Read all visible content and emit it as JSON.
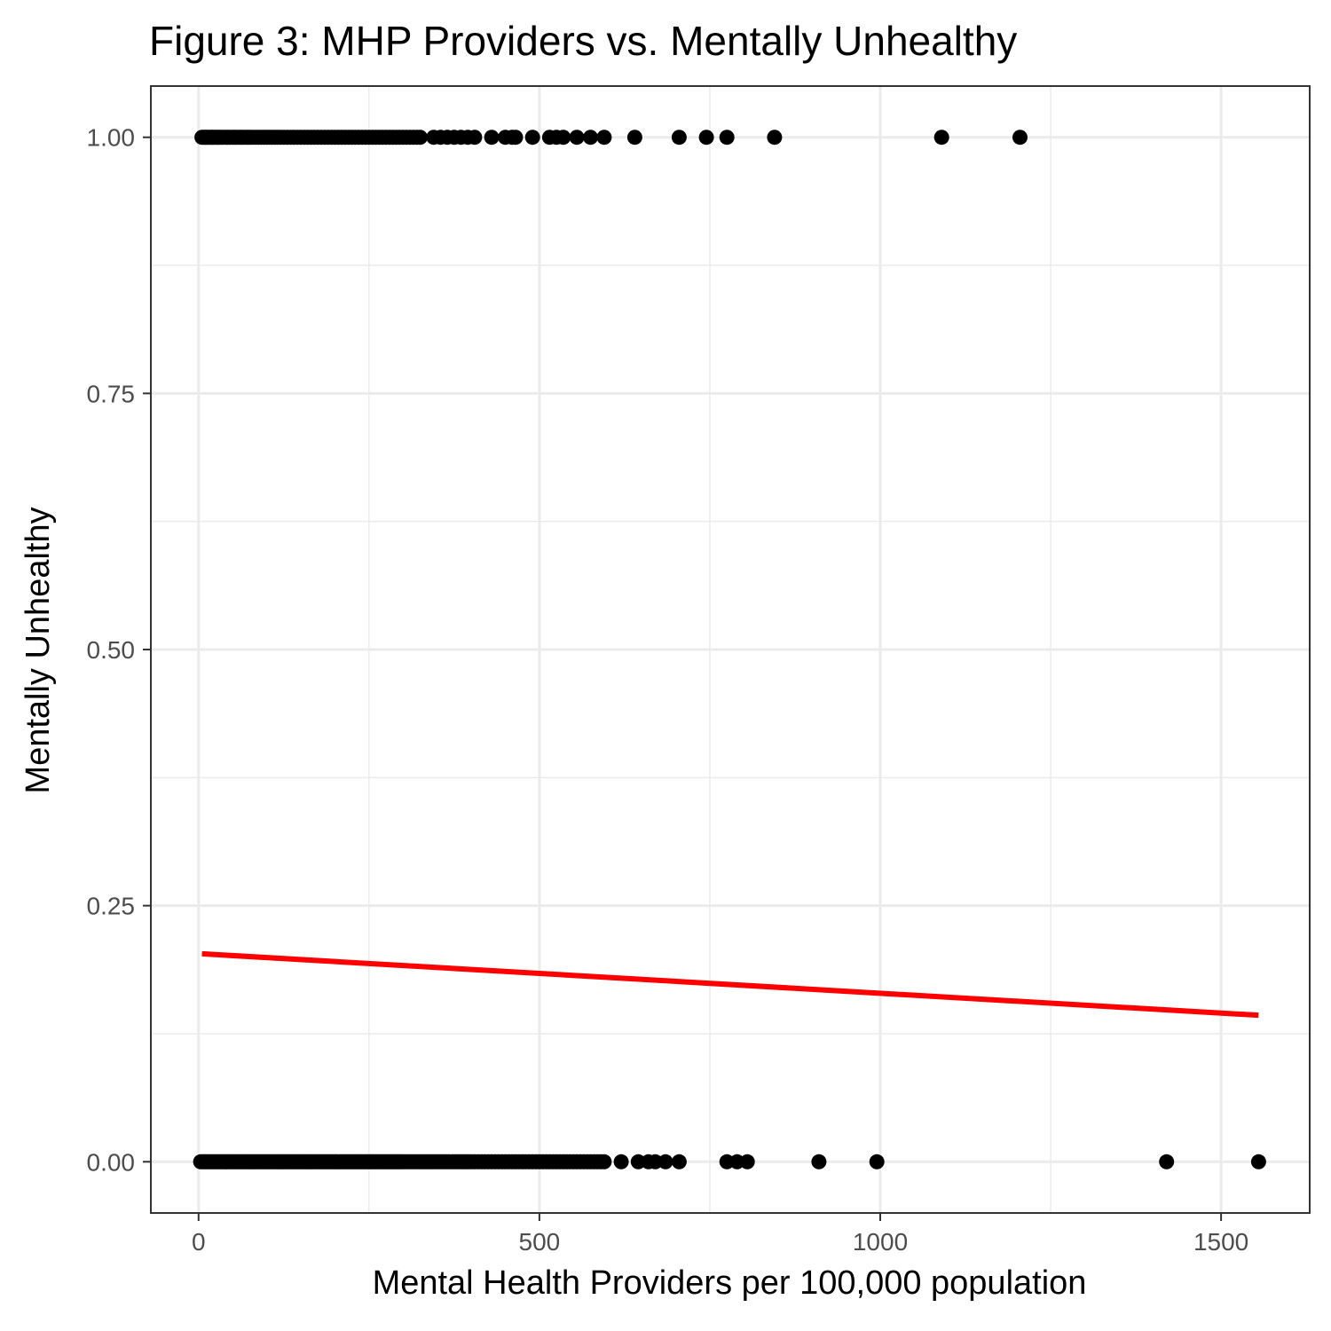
{
  "chart_data": {
    "type": "scatter",
    "title": "Figure 3: MHP Providers vs. Mentally Unhealthy",
    "xlabel": "Mental Health Providers per 100,000 population",
    "ylabel": "Mentally Unhealthy",
    "xlim": [
      -70,
      1630
    ],
    "ylim": [
      -0.05,
      1.05
    ],
    "x_ticks": [
      0,
      500,
      1000,
      1500
    ],
    "x_tick_labels": [
      "0",
      "500",
      "1000",
      "1500"
    ],
    "y_ticks": [
      0,
      0.25,
      0.5,
      0.75,
      1
    ],
    "y_tick_labels": [
      "0.00",
      "0.25",
      "0.50",
      "0.75",
      "1.00"
    ],
    "grid": true,
    "legend": "none",
    "colors": {
      "points": "#000000",
      "trend_line": "#ff0000",
      "grid": "#ebebeb",
      "panel_border": "#333333"
    },
    "series": [
      {
        "y": 1,
        "x": [
          5,
          8,
          10,
          12,
          15,
          18,
          20,
          22,
          25,
          28,
          30,
          33,
          36,
          40,
          43,
          46,
          50,
          53,
          56,
          60,
          63,
          66,
          70,
          73,
          76,
          80,
          84,
          88,
          92,
          96,
          100,
          104,
          108,
          112,
          116,
          120,
          125,
          130,
          135,
          140,
          145,
          150,
          155,
          160,
          165,
          170,
          175,
          180,
          185,
          190,
          195,
          200,
          205,
          210,
          215,
          220,
          225,
          230,
          235,
          240,
          245,
          250,
          255,
          260,
          265,
          270,
          275,
          280,
          285,
          290,
          295,
          300,
          305,
          310,
          315,
          320,
          325,
          345,
          355,
          365,
          375,
          385,
          395,
          405,
          430,
          450,
          460,
          465,
          490,
          515,
          525,
          535,
          555,
          575,
          595,
          640,
          705,
          745,
          775,
          845,
          1090,
          1205
        ]
      },
      {
        "y": 0,
        "x": [
          3,
          6,
          9,
          12,
          15,
          18,
          21,
          24,
          27,
          30,
          33,
          36,
          39,
          42,
          45,
          48,
          51,
          54,
          57,
          60,
          63,
          66,
          69,
          72,
          75,
          78,
          81,
          84,
          87,
          90,
          93,
          96,
          99,
          102,
          105,
          108,
          111,
          114,
          117,
          120,
          123,
          126,
          129,
          132,
          135,
          138,
          141,
          144,
          147,
          150,
          153,
          156,
          159,
          162,
          165,
          168,
          171,
          174,
          177,
          180,
          183,
          186,
          189,
          192,
          195,
          198,
          201,
          204,
          207,
          210,
          213,
          216,
          219,
          222,
          225,
          228,
          231,
          234,
          237,
          240,
          243,
          246,
          249,
          252,
          255,
          258,
          261,
          264,
          267,
          270,
          273,
          276,
          279,
          282,
          285,
          288,
          291,
          294,
          297,
          300,
          304,
          308,
          312,
          316,
          320,
          324,
          328,
          332,
          336,
          340,
          344,
          348,
          352,
          356,
          360,
          364,
          368,
          372,
          376,
          380,
          384,
          388,
          392,
          396,
          400,
          405,
          410,
          415,
          420,
          425,
          430,
          435,
          440,
          445,
          450,
          455,
          460,
          465,
          470,
          475,
          480,
          485,
          490,
          495,
          500,
          505,
          510,
          515,
          520,
          525,
          530,
          535,
          540,
          545,
          550,
          555,
          560,
          565,
          570,
          575,
          580,
          585,
          590,
          595,
          620,
          645,
          660,
          670,
          685,
          705,
          775,
          790,
          805,
          910,
          995,
          1420,
          1555
        ]
      }
    ],
    "trend_line": {
      "x": [
        5,
        1555
      ],
      "y": [
        0.203,
        0.143
      ]
    }
  }
}
